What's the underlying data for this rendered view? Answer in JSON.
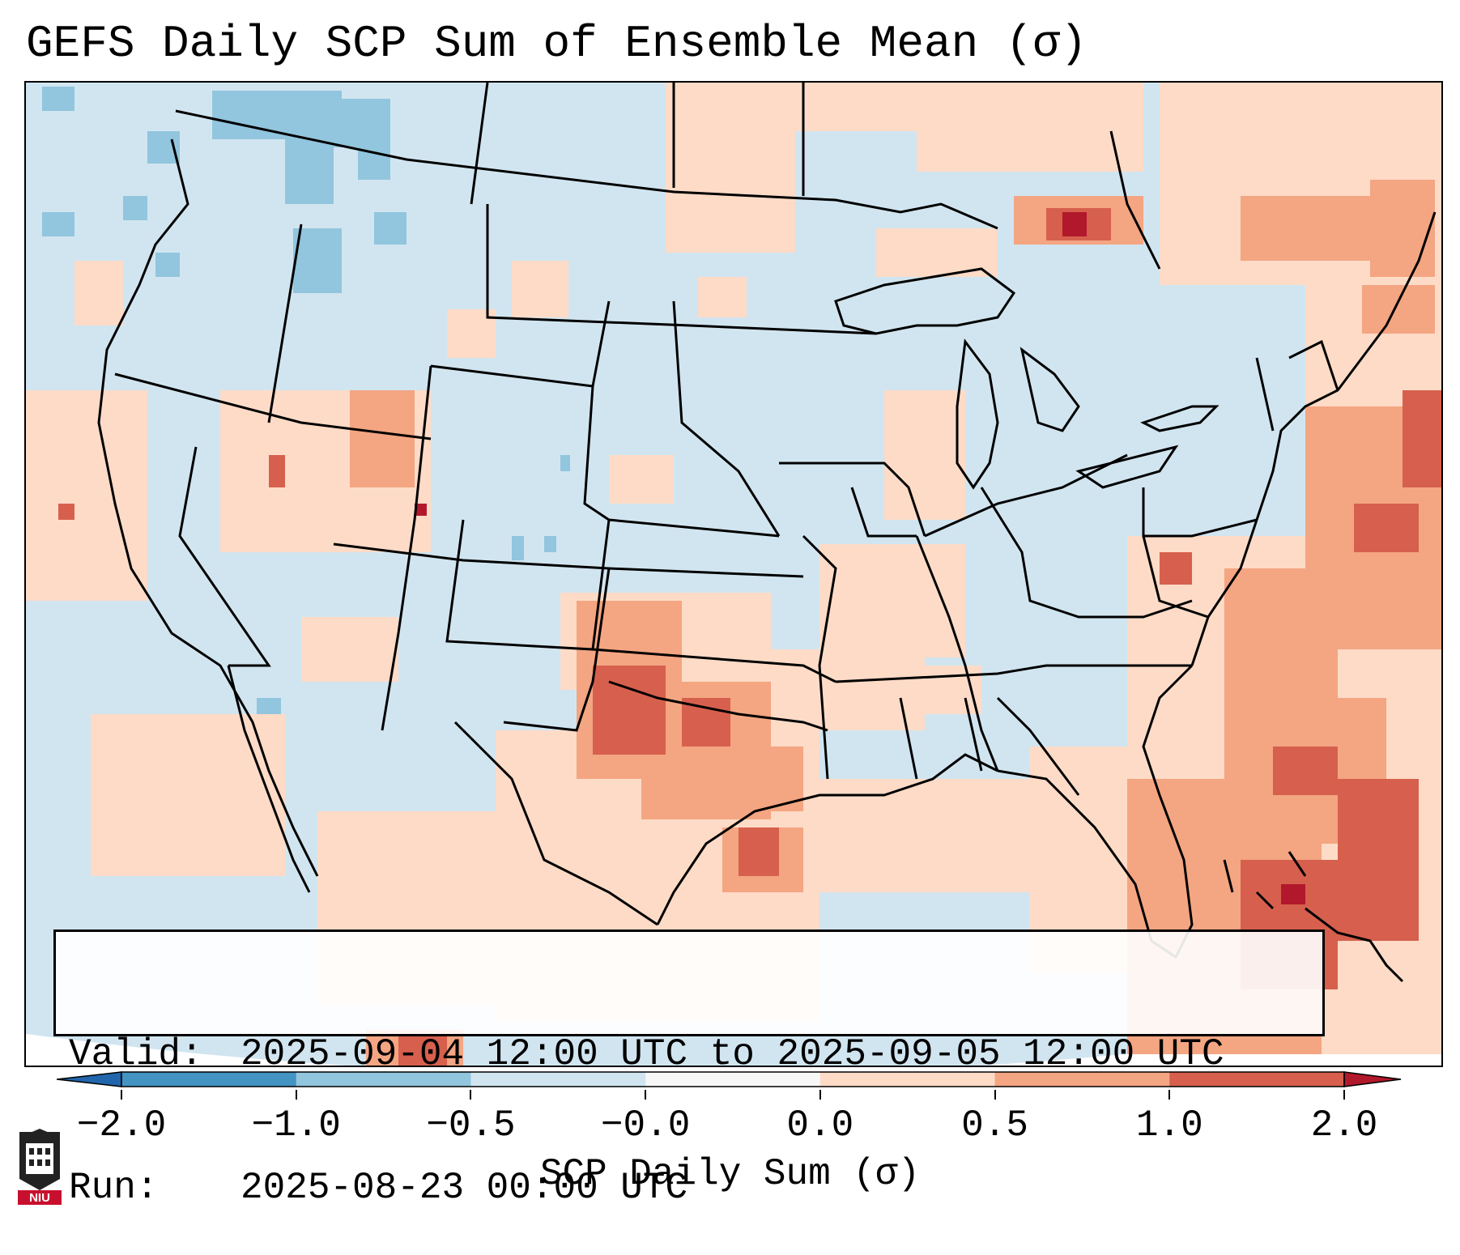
{
  "title": "GEFS Daily SCP Sum of Ensemble Mean (σ)",
  "info": {
    "valid_key": "Valid:",
    "valid_value": "2025-09-04 12:00 UTC to 2025-09-05 12:00 UTC",
    "run_key": "Run:",
    "run_value": "2025-08-23 00:00 UTC"
  },
  "colorbar": {
    "label": "SCP Daily Sum (σ)",
    "ticks": [
      "−2.0",
      "−1.0",
      "−0.5",
      "−0.0",
      "0.0",
      "0.5",
      "1.0",
      "2.0"
    ],
    "bin_colors": [
      "#4393c3",
      "#92c5de",
      "#d1e5f0",
      "#f7f7f7",
      "#fddbc7",
      "#f4a582",
      "#d6604d"
    ],
    "under_color": "#2166ac",
    "over_color": "#b2182b"
  },
  "logo": {
    "text": "NIU",
    "icon": "niu-university-logo-icon"
  },
  "colors": {
    "ocean_neutral": "#d1e5f0",
    "land_outline": "#000000"
  }
}
